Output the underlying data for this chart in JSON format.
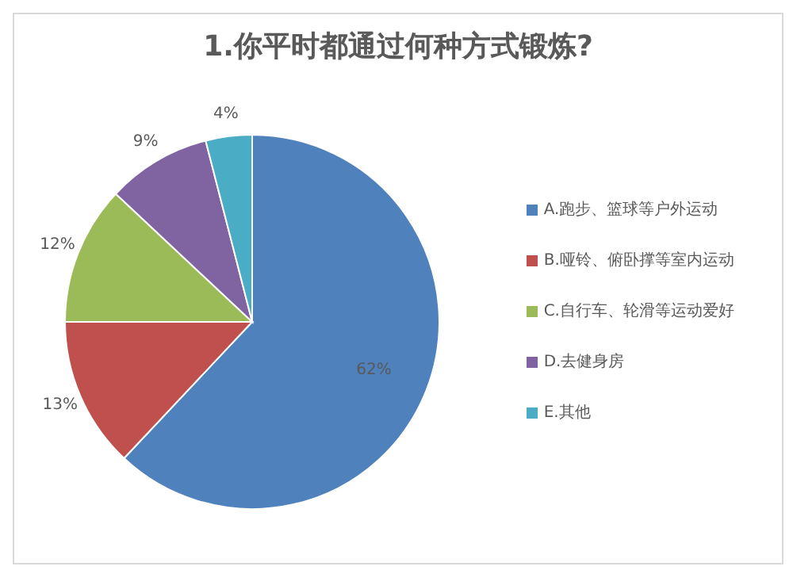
{
  "chart_data": {
    "type": "pie",
    "title": "1.你平时都通过何种方式锻炼?",
    "categories": [
      "A.跑步、篮球等户外运动",
      "B.哑铃、俯卧撑等室内运动",
      "C.自行车、轮滑等运动爱好",
      "D.去健身房",
      "E.其他"
    ],
    "values": [
      62,
      13,
      12,
      9,
      4
    ],
    "value_labels": [
      "62%",
      "13%",
      "12%",
      "9%",
      "4%"
    ],
    "colors": [
      "#4f81bd",
      "#c0504d",
      "#9bbb59",
      "#8064a2",
      "#4bacc6"
    ],
    "legend": "right"
  }
}
